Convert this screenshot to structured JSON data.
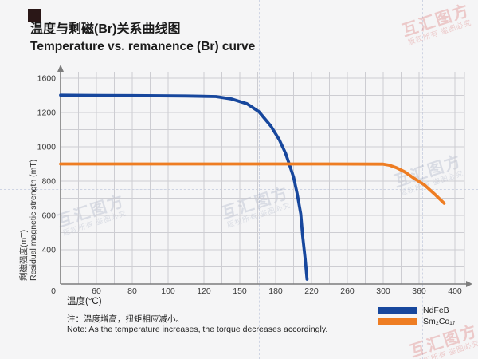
{
  "header": {
    "title_zh": "温度与剩磁(Br)关系曲线图",
    "title_en": "Temperature vs. remanence (Br) curve"
  },
  "chart_data": {
    "type": "line",
    "title": "温度与剩磁(Br)关系曲线图 / Temperature vs. remanence (Br) curve",
    "xlabel": "温度(°C)",
    "ylabel_zh": "剩磁强度(mT)",
    "ylabel_en": "Residual magnetic strength (mT)",
    "x_ticks": [
      0,
      60,
      80,
      100,
      120,
      150,
      180,
      220,
      260,
      300,
      360,
      400
    ],
    "y_ticks": [
      0,
      400,
      600,
      800,
      1000,
      1200,
      1600
    ],
    "y_tick_labels_shown": [
      400,
      600,
      800,
      1000,
      1200,
      1600
    ],
    "origin_label": "0",
    "grid": true,
    "legend_position": "bottom-right",
    "axis_color": "#7d7d7d",
    "grid_color": "#c9c9cf",
    "series": [
      {
        "name": "NdFeB",
        "color": "#17479d",
        "points": [
          [
            0,
            1402
          ],
          [
            40,
            1400
          ],
          [
            80,
            1397
          ],
          [
            110,
            1393
          ],
          [
            130,
            1386
          ],
          [
            143,
            1358
          ],
          [
            156,
            1302
          ],
          [
            166,
            1209
          ],
          [
            176,
            1121
          ],
          [
            184,
            1042
          ],
          [
            191,
            963
          ],
          [
            195,
            902
          ],
          [
            200,
            823
          ],
          [
            204,
            726
          ],
          [
            208,
            609
          ],
          [
            210,
            484
          ],
          [
            213,
            288
          ],
          [
            215,
            56
          ]
        ]
      },
      {
        "name": "Sm₂Co₁₇",
        "color": "#ee7d23",
        "points": [
          [
            0,
            900
          ],
          [
            80,
            900
          ],
          [
            160,
            900
          ],
          [
            240,
            900
          ],
          [
            300,
            899
          ],
          [
            310,
            893
          ],
          [
            322,
            878
          ],
          [
            335,
            856
          ],
          [
            350,
            820
          ],
          [
            366,
            777
          ],
          [
            377,
            726
          ],
          [
            388,
            670
          ]
        ]
      }
    ]
  },
  "legend": {
    "items": [
      {
        "label": "NdFeB",
        "color": "#17479d"
      },
      {
        "label": "Sm₂Co₁₇",
        "color": "#ee7d23"
      }
    ]
  },
  "note": {
    "zh": "注：温度增高，扭矩相应减小。",
    "en": "Note: As the temperature increases, the torque decreases accordingly."
  },
  "watermark": {
    "text": "互汇图方",
    "subtext": "版权所有 盗图必究"
  }
}
